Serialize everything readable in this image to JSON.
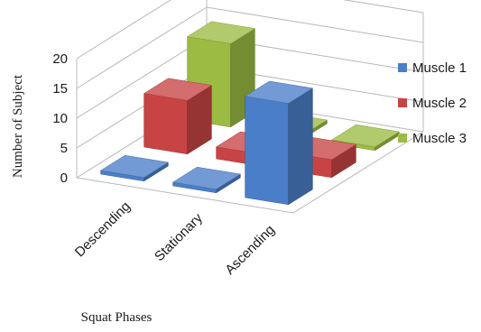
{
  "chart_data": {
    "type": "bar",
    "style": "3d-clustered-column",
    "categories": [
      "Descending",
      "Stationary",
      "Ascending"
    ],
    "series": [
      {
        "name": "Muscle 1",
        "color": "#4a7ec8",
        "values": [
          0,
          0,
          17
        ]
      },
      {
        "name": "Muscle 2",
        "color": "#c84444",
        "values": [
          9,
          2,
          3
        ]
      },
      {
        "name": "Muscle 3",
        "color": "#9bbb43",
        "values": [
          14,
          0,
          0
        ]
      }
    ],
    "xlabel": "Squat Phases",
    "ylabel": "Number of Subject",
    "ylim": [
      0,
      20
    ],
    "yticks": [
      0,
      5,
      10,
      15,
      20
    ],
    "grid": true,
    "legend_position": "right"
  }
}
